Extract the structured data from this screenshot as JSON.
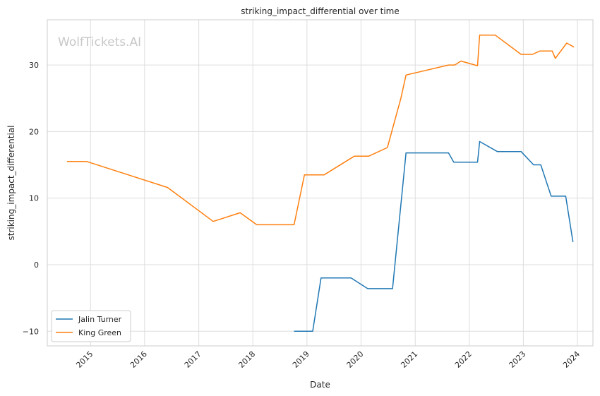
{
  "chart_data": {
    "type": "line",
    "title": "striking_impact_differential over time",
    "xlabel": "Date",
    "ylabel": "striking_impact_differential",
    "watermark": "WolfTickets.AI",
    "x_ticks": [
      "2015",
      "2016",
      "2017",
      "2018",
      "2019",
      "2020",
      "2021",
      "2022",
      "2023",
      "2024"
    ],
    "y_ticks": [
      -10,
      0,
      10,
      20,
      30
    ],
    "xlim": [
      "2014-03-15",
      "2024-04-15"
    ],
    "ylim": [
      -12.2,
      36.8
    ],
    "grid": true,
    "legend_position": "lower-left",
    "series": [
      {
        "name": "Jalin Turner",
        "color": "#1f77b4",
        "points": [
          [
            "2018-10-06",
            -10.0
          ],
          [
            "2019-02-09",
            -10.0
          ],
          [
            "2019-04-06",
            -2.0
          ],
          [
            "2019-10-26",
            -2.0
          ],
          [
            "2020-02-15",
            -3.6
          ],
          [
            "2020-08-01",
            -3.6
          ],
          [
            "2020-10-31",
            16.8
          ],
          [
            "2021-08-14",
            16.8
          ],
          [
            "2021-09-18",
            15.4
          ],
          [
            "2022-02-26",
            15.4
          ],
          [
            "2022-03-12",
            18.5
          ],
          [
            "2022-07-09",
            17.0
          ],
          [
            "2022-12-17",
            17.0
          ],
          [
            "2023-03-11",
            15.0
          ],
          [
            "2023-04-29",
            15.0
          ],
          [
            "2023-07-08",
            10.3
          ],
          [
            "2023-10-14",
            10.3
          ],
          [
            "2023-12-02",
            3.4
          ]
        ]
      },
      {
        "name": "King Green",
        "color": "#ff7f0e",
        "points": [
          [
            "2014-07-26",
            15.5
          ],
          [
            "2014-12-06",
            15.5
          ],
          [
            "2016-06-04",
            11.6
          ],
          [
            "2017-04-08",
            6.5
          ],
          [
            "2017-10-07",
            7.8
          ],
          [
            "2018-01-27",
            6.0
          ],
          [
            "2018-10-06",
            6.0
          ],
          [
            "2018-12-15",
            13.5
          ],
          [
            "2019-04-27",
            13.5
          ],
          [
            "2019-11-16",
            16.3
          ],
          [
            "2020-02-22",
            16.3
          ],
          [
            "2020-06-27",
            17.6
          ],
          [
            "2020-09-26",
            25.0
          ],
          [
            "2020-10-31",
            28.5
          ],
          [
            "2021-08-14",
            30.0
          ],
          [
            "2021-09-25",
            30.0
          ],
          [
            "2021-11-06",
            30.6
          ],
          [
            "2022-02-26",
            29.9
          ],
          [
            "2022-03-12",
            34.5
          ],
          [
            "2022-06-25",
            34.5
          ],
          [
            "2022-12-17",
            31.6
          ],
          [
            "2023-03-04",
            31.6
          ],
          [
            "2023-04-22",
            32.1
          ],
          [
            "2023-07-15",
            32.1
          ],
          [
            "2023-08-05",
            31.0
          ],
          [
            "2023-10-21",
            33.3
          ],
          [
            "2023-12-09",
            32.7
          ]
        ]
      }
    ]
  }
}
